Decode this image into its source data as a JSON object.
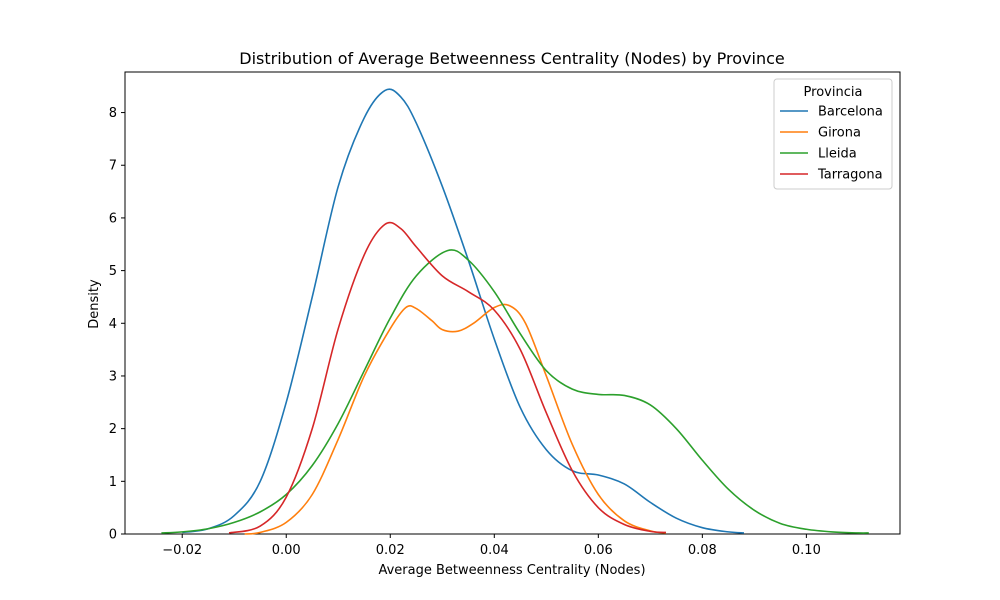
{
  "chart_data": {
    "type": "line",
    "title": "Distribution of Average Betweenness Centrality (Nodes) by Province",
    "xlabel": "Average Betweenness Centrality (Nodes)",
    "ylabel": "Density",
    "xlim": [
      -0.031,
      0.118
    ],
    "ylim": [
      0,
      8.77
    ],
    "xticks": [
      -0.02,
      0.0,
      0.02,
      0.04,
      0.06,
      0.08,
      0.1
    ],
    "xtick_labels": [
      "−0.02",
      "0.00",
      "0.02",
      "0.04",
      "0.06",
      "0.08",
      "0.10"
    ],
    "yticks": [
      0,
      1,
      2,
      3,
      4,
      5,
      6,
      7,
      8
    ],
    "ytick_labels": [
      "0",
      "1",
      "2",
      "3",
      "4",
      "5",
      "6",
      "7",
      "8"
    ],
    "grid": false,
    "legend": {
      "title": "Provincia",
      "placement": "top-right"
    },
    "series": [
      {
        "name": "Barcelona",
        "color": "#1f77b4",
        "points": [
          [
            -0.02,
            0.03
          ],
          [
            -0.015,
            0.1
          ],
          [
            -0.01,
            0.35
          ],
          [
            -0.005,
            1.0
          ],
          [
            0.0,
            2.5
          ],
          [
            0.005,
            4.5
          ],
          [
            0.01,
            6.6
          ],
          [
            0.015,
            7.9
          ],
          [
            0.019,
            8.42
          ],
          [
            0.022,
            8.3
          ],
          [
            0.025,
            7.8
          ],
          [
            0.03,
            6.6
          ],
          [
            0.035,
            5.2
          ],
          [
            0.04,
            3.7
          ],
          [
            0.045,
            2.4
          ],
          [
            0.05,
            1.6
          ],
          [
            0.055,
            1.2
          ],
          [
            0.06,
            1.12
          ],
          [
            0.065,
            0.95
          ],
          [
            0.07,
            0.6
          ],
          [
            0.075,
            0.3
          ],
          [
            0.08,
            0.12
          ],
          [
            0.085,
            0.04
          ],
          [
            0.088,
            0.02
          ]
        ]
      },
      {
        "name": "Girona",
        "color": "#ff7f0e",
        "points": [
          [
            -0.008,
            0.0
          ],
          [
            -0.005,
            0.03
          ],
          [
            0.0,
            0.22
          ],
          [
            0.005,
            0.75
          ],
          [
            0.01,
            1.8
          ],
          [
            0.015,
            3.0
          ],
          [
            0.02,
            3.9
          ],
          [
            0.023,
            4.3
          ],
          [
            0.025,
            4.28
          ],
          [
            0.028,
            4.05
          ],
          [
            0.03,
            3.88
          ],
          [
            0.033,
            3.85
          ],
          [
            0.036,
            4.0
          ],
          [
            0.04,
            4.3
          ],
          [
            0.043,
            4.33
          ],
          [
            0.046,
            4.0
          ],
          [
            0.05,
            3.0
          ],
          [
            0.055,
            1.7
          ],
          [
            0.06,
            0.75
          ],
          [
            0.065,
            0.25
          ],
          [
            0.07,
            0.06
          ],
          [
            0.073,
            0.02
          ]
        ]
      },
      {
        "name": "Lleida",
        "color": "#2ca02c",
        "points": [
          [
            -0.024,
            0.02
          ],
          [
            -0.02,
            0.04
          ],
          [
            -0.015,
            0.1
          ],
          [
            -0.01,
            0.22
          ],
          [
            -0.005,
            0.42
          ],
          [
            0.0,
            0.75
          ],
          [
            0.005,
            1.3
          ],
          [
            0.01,
            2.1
          ],
          [
            0.015,
            3.1
          ],
          [
            0.02,
            4.1
          ],
          [
            0.025,
            4.9
          ],
          [
            0.031,
            5.38
          ],
          [
            0.035,
            5.2
          ],
          [
            0.04,
            4.6
          ],
          [
            0.045,
            3.8
          ],
          [
            0.05,
            3.1
          ],
          [
            0.055,
            2.75
          ],
          [
            0.06,
            2.65
          ],
          [
            0.065,
            2.63
          ],
          [
            0.07,
            2.45
          ],
          [
            0.075,
            2.0
          ],
          [
            0.08,
            1.4
          ],
          [
            0.085,
            0.85
          ],
          [
            0.09,
            0.45
          ],
          [
            0.095,
            0.2
          ],
          [
            0.1,
            0.09
          ],
          [
            0.105,
            0.04
          ],
          [
            0.11,
            0.02
          ],
          [
            0.112,
            0.02
          ]
        ]
      },
      {
        "name": "Tarragona",
        "color": "#d62728",
        "points": [
          [
            -0.011,
            0.02
          ],
          [
            -0.005,
            0.15
          ],
          [
            0.0,
            0.7
          ],
          [
            0.005,
            2.0
          ],
          [
            0.01,
            3.9
          ],
          [
            0.015,
            5.3
          ],
          [
            0.019,
            5.88
          ],
          [
            0.022,
            5.8
          ],
          [
            0.025,
            5.45
          ],
          [
            0.03,
            4.9
          ],
          [
            0.035,
            4.6
          ],
          [
            0.04,
            4.25
          ],
          [
            0.045,
            3.5
          ],
          [
            0.05,
            2.3
          ],
          [
            0.055,
            1.2
          ],
          [
            0.06,
            0.5
          ],
          [
            0.065,
            0.18
          ],
          [
            0.07,
            0.05
          ],
          [
            0.073,
            0.03
          ]
        ]
      }
    ]
  }
}
